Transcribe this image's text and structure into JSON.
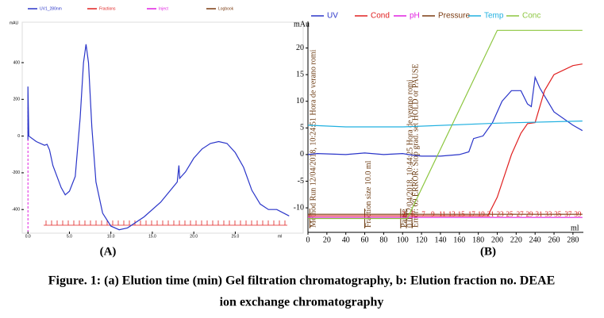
{
  "chart_data": [
    {
      "type": "line",
      "xlim": [
        -0.5,
        33
      ],
      "ylim": [
        -520,
        590
      ],
      "xticks": [
        {
          "value": 0,
          "label": "0.0"
        },
        {
          "value": 5,
          "label": "5.0"
        },
        {
          "value": 10,
          "label": "10.0"
        },
        {
          "value": 15,
          "label": "15.0"
        },
        {
          "value": 20,
          "label": "20.0"
        },
        {
          "value": 25,
          "label": "25.0"
        }
      ],
      "yticks": [
        -400,
        -200,
        0,
        200,
        400
      ],
      "x_label": "ml",
      "y_label": "mAU",
      "series": [
        {
          "name": "UV1_280nm",
          "color": "#2a35c9",
          "x": [
            0,
            0,
            0.1,
            1,
            2,
            2.3,
            2.6,
            3,
            4,
            4.5,
            5,
            5.7,
            6.3,
            6.7,
            7.0,
            7.3,
            7.7,
            8.2,
            9,
            10,
            11,
            12,
            14,
            16,
            18,
            18.2,
            18.3,
            18.5,
            19,
            20,
            21,
            22,
            23,
            24,
            25,
            26,
            27,
            28,
            29,
            30,
            31.5
          ],
          "values": [
            -20,
            270,
            0,
            -30,
            -50,
            -45,
            -75,
            -160,
            -280,
            -320,
            -300,
            -220,
            100,
            400,
            500,
            400,
            50,
            -250,
            -420,
            -490,
            -510,
            -500,
            -440,
            -360,
            -250,
            -160,
            -230,
            -220,
            -195,
            -120,
            -70,
            -40,
            -30,
            -40,
            -90,
            -170,
            -295,
            -370,
            -400,
            -400,
            -435
          ]
        }
      ],
      "other_traces": [
        {
          "name": "Fractions",
          "color": "#e02020"
        },
        {
          "name": "Inject",
          "color": "#e020e0"
        },
        {
          "name": "Logbook",
          "color": "#7a3a10"
        }
      ]
    },
    {
      "type": "line",
      "xlim": [
        0,
        291
      ],
      "ylim": [
        -14.6,
        23.5
      ],
      "xticks": [
        0,
        20,
        40,
        60,
        80,
        100,
        120,
        140,
        160,
        180,
        200,
        220,
        240,
        260,
        280
      ],
      "yticks": [
        -10,
        -5,
        0,
        5,
        10,
        15,
        20
      ],
      "x_label": "ml",
      "y_label": "mAu",
      "series": [
        {
          "name": "UV",
          "color": "#2a35c9",
          "x": [
            0,
            10,
            40,
            60,
            80,
            100,
            110,
            120,
            140,
            160,
            170,
            175,
            185,
            195,
            205,
            215,
            225,
            232,
            236,
            240,
            245,
            260,
            280,
            290
          ],
          "values": [
            0,
            0.2,
            0,
            0.3,
            0,
            0.2,
            -0.1,
            -0.3,
            -0.3,
            0,
            0.5,
            3,
            3.5,
            6,
            10,
            12,
            12,
            9.5,
            9,
            14.5,
            12.5,
            8,
            5.5,
            4.5
          ]
        },
        {
          "name": "Cond",
          "color": "#e02020",
          "x": [
            0,
            190,
            200,
            215,
            225,
            232,
            240,
            250,
            260,
            280,
            290
          ],
          "values": [
            -11.5,
            -11.5,
            -8,
            0,
            4,
            5.8,
            6,
            12,
            15,
            16.7,
            17
          ]
        },
        {
          "name": "pH",
          "color": "#e020e0",
          "x": [
            0,
            290
          ],
          "values": [
            -11.8,
            -11.8
          ]
        },
        {
          "name": "Pressure",
          "color": "#7a3a10",
          "x": [
            0,
            290
          ],
          "values": [
            -11.2,
            -11.2
          ]
        },
        {
          "name": "Temp",
          "color": "#20b0e0",
          "x": [
            0,
            40,
            100,
            200,
            290
          ],
          "values": [
            5.5,
            5.2,
            5.2,
            5.9,
            6.3
          ]
        },
        {
          "name": "Conc",
          "color": "#8cc63f",
          "x": [
            0,
            105,
            200,
            290
          ],
          "values": [
            -12,
            -12,
            23.3,
            23.3
          ]
        }
      ],
      "annotations": [
        {
          "text": "Method Run 12/04/2018, 10:24:51 Hora de verano romi",
          "x": 2
        },
        {
          "text": "Fraction size 10.0 ml",
          "x": 60
        },
        {
          "text": "Pause",
          "x": 98
        },
        {
          "text": "0.0 12/04/2018, 10:44:25 Hora de verano romi",
          "x": 104
        },
        {
          "text": "Error: 69 ERROR: Stop grad. set HOLD or PAUSE",
          "x": 110
        }
      ],
      "fraction_labels": [
        "3",
        "5",
        "7",
        "9",
        "11",
        "13",
        "15",
        "17",
        "19",
        "21",
        "23",
        "25",
        "27",
        "29",
        "31",
        "33",
        "35",
        "37",
        "39"
      ],
      "fraction_x": [
        101,
        111,
        122,
        132,
        142,
        152,
        162,
        173,
        183,
        193,
        203,
        213,
        224,
        234,
        244,
        254,
        264,
        275,
        285
      ]
    }
  ],
  "panel_labels": [
    "(A)",
    "(B)"
  ],
  "caption": [
    "Figure. 1: (a) Elution time (min) Gel filtration chromatography, b: Elution fraction no. DEAE",
    "ion exchange chromatography"
  ]
}
